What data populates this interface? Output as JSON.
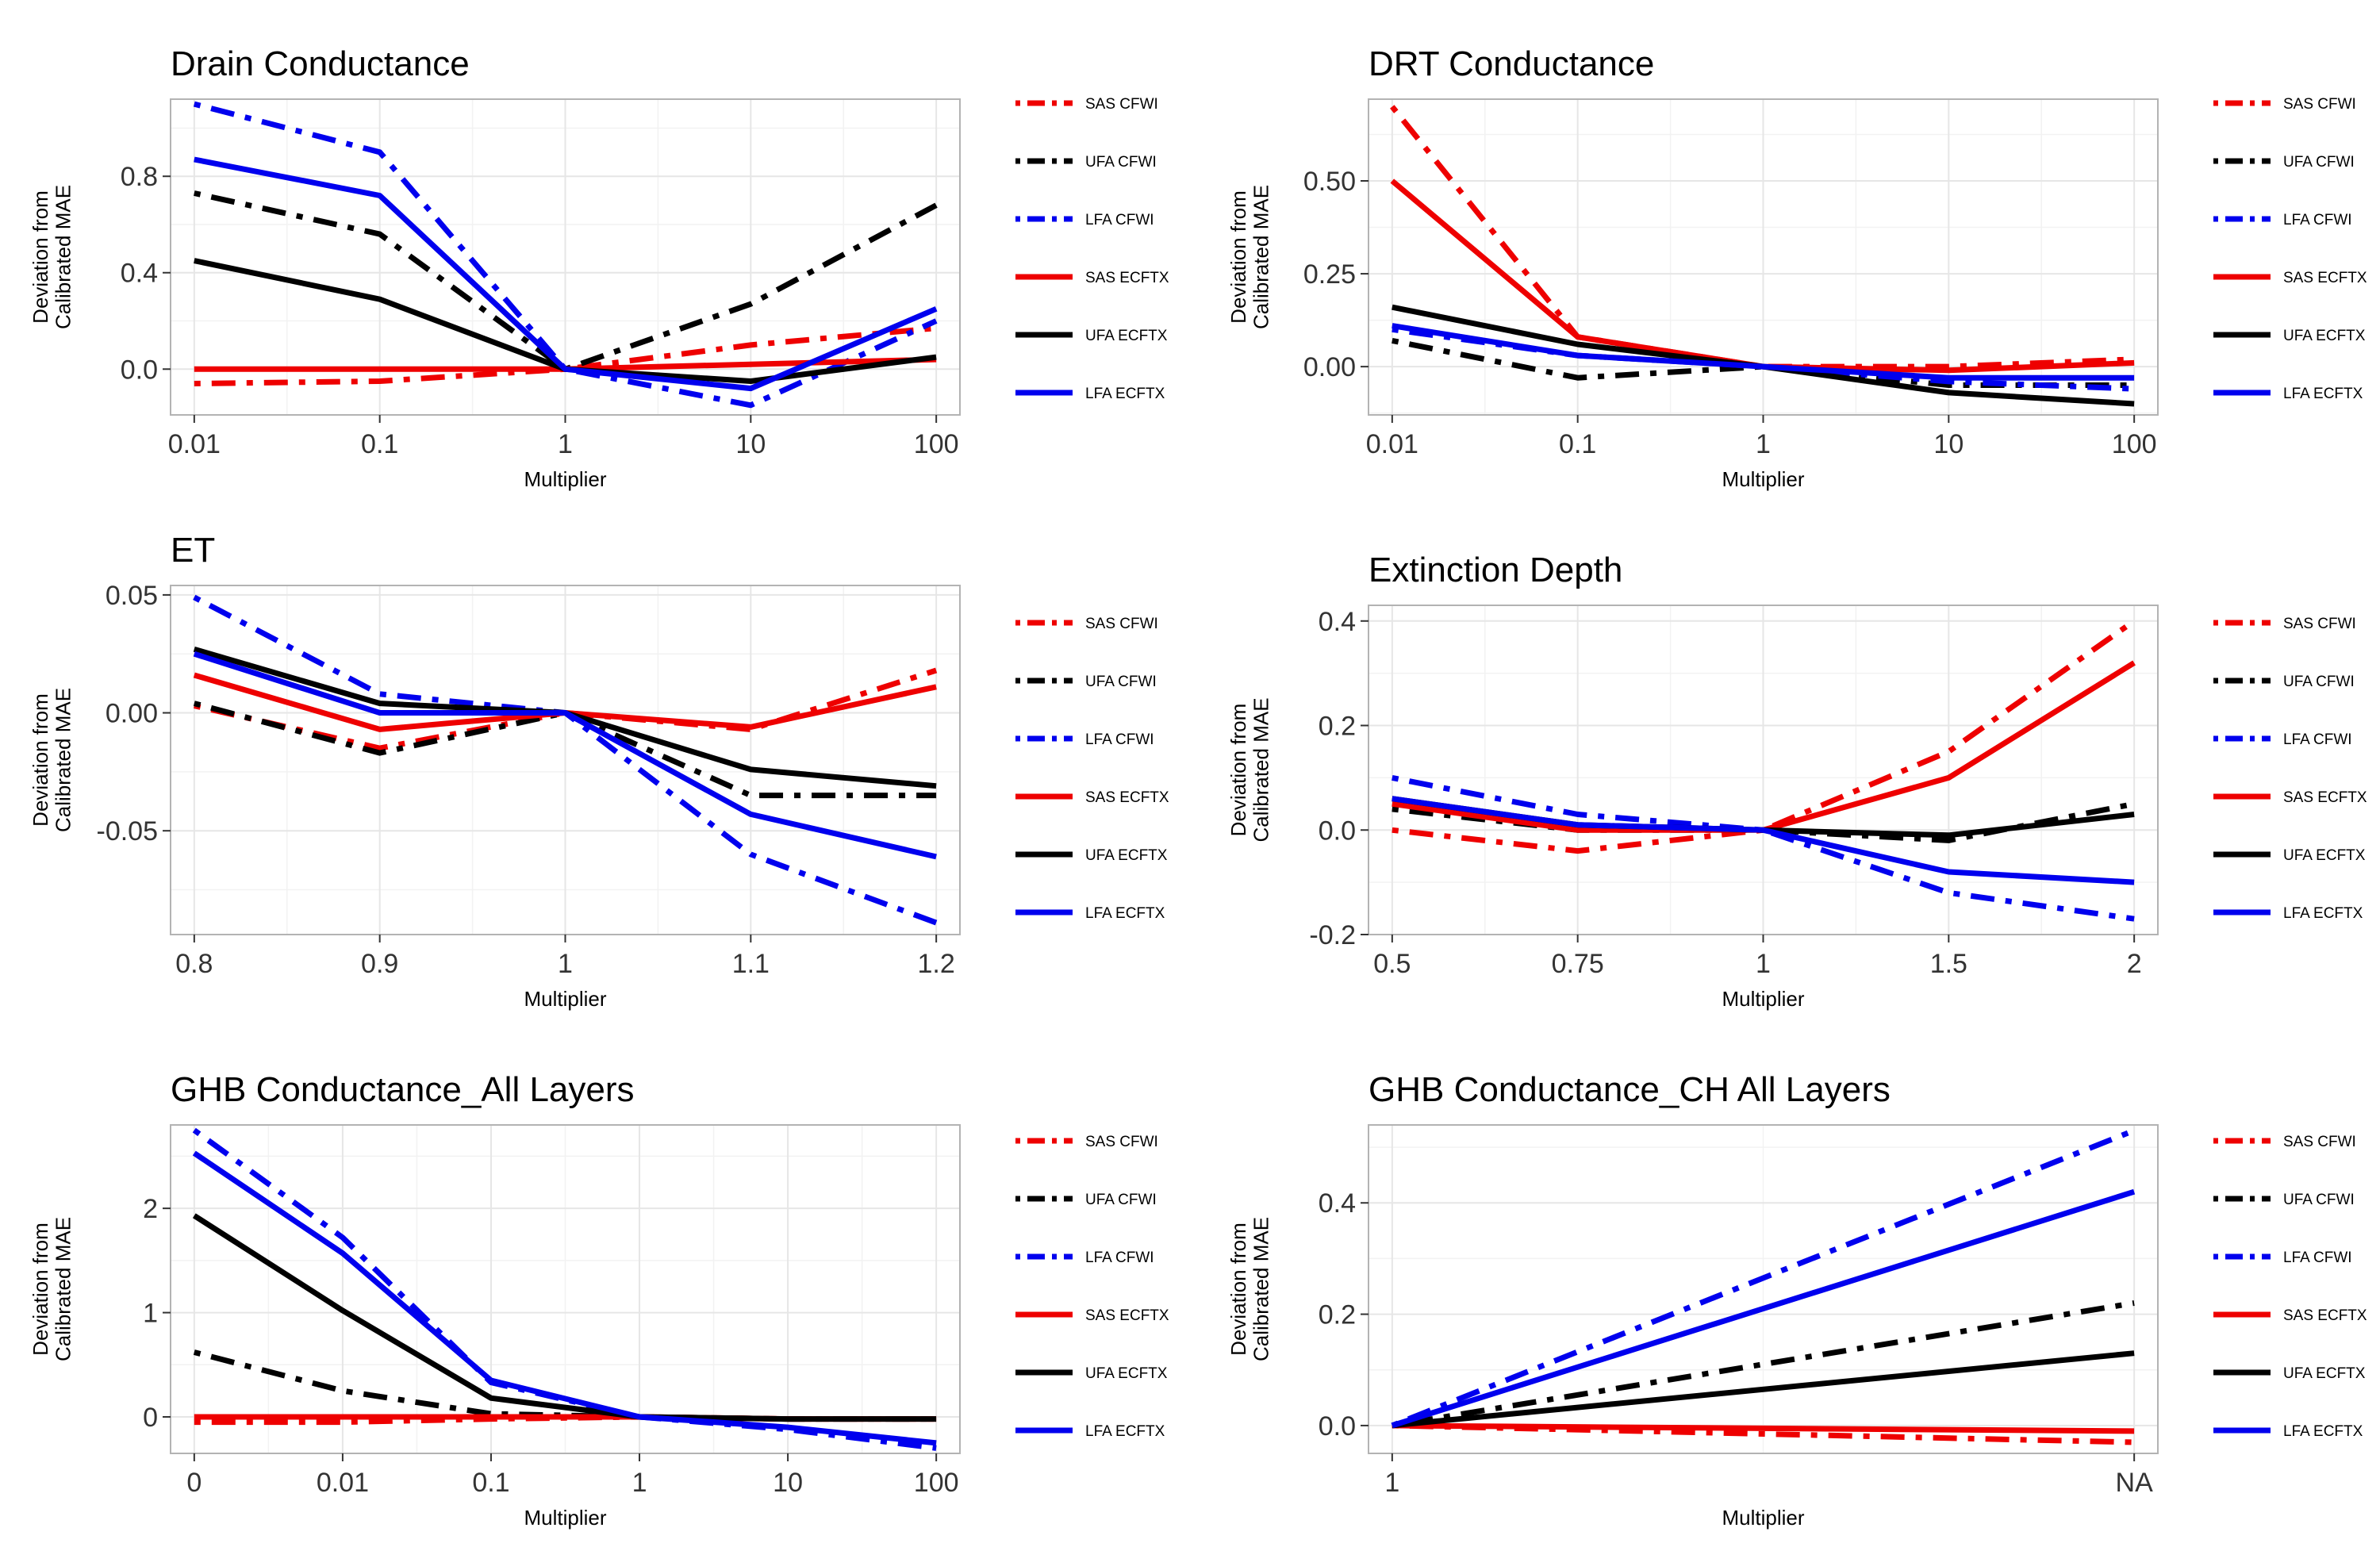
{
  "figure": {
    "colors": {
      "red": "#ee0000",
      "black": "#000000",
      "blue": "#0000ee",
      "grid": "#e6e6e6",
      "frame": "#b3b3b3"
    },
    "legend_entries": [
      {
        "label": "SAS CFWI",
        "color": "red",
        "dash": "dotdash"
      },
      {
        "label": "UFA CFWI",
        "color": "black",
        "dash": "dotdash"
      },
      {
        "label": "LFA CFWI",
        "color": "blue",
        "dash": "dotdash"
      },
      {
        "label": "SAS ECFTX",
        "color": "red",
        "dash": "solid"
      },
      {
        "label": "UFA ECFTX",
        "color": "black",
        "dash": "solid"
      },
      {
        "label": "LFA ECFTX",
        "color": "blue",
        "dash": "solid"
      }
    ]
  },
  "chart_data": [
    {
      "type": "line",
      "title": "Drain Conductance",
      "xlabel": "Multiplier",
      "ylabel": "Deviation from Calibrated MAE",
      "categories": [
        "0.01",
        "0.1",
        "1",
        "10",
        "100"
      ],
      "ylim": [
        -0.19,
        1.12
      ],
      "yticks": [
        0.0,
        0.4,
        0.8
      ],
      "ytick_labels": [
        "0.0",
        "0.4",
        "0.8"
      ],
      "grid": true,
      "legend": "right",
      "series": [
        {
          "name": "SAS CFWI",
          "values": [
            -0.06,
            -0.05,
            0.0,
            0.1,
            0.17
          ]
        },
        {
          "name": "UFA CFWI",
          "values": [
            0.73,
            0.56,
            0.0,
            0.27,
            0.68
          ]
        },
        {
          "name": "LFA CFWI",
          "values": [
            1.1,
            0.9,
            0.0,
            -0.15,
            0.2
          ]
        },
        {
          "name": "SAS ECFTX",
          "values": [
            0.0,
            0.0,
            0.0,
            0.02,
            0.04
          ]
        },
        {
          "name": "UFA ECFTX",
          "values": [
            0.45,
            0.29,
            0.0,
            -0.05,
            0.05
          ]
        },
        {
          "name": "LFA ECFTX",
          "values": [
            0.87,
            0.72,
            0.0,
            -0.08,
            0.25
          ]
        }
      ]
    },
    {
      "type": "line",
      "title": "DRT Conductance",
      "xlabel": "Multiplier",
      "ylabel": "Deviation from Calibrated MAE",
      "categories": [
        "0.01",
        "0.1",
        "1",
        "10",
        "100"
      ],
      "ylim": [
        -0.13,
        0.72
      ],
      "yticks": [
        0.0,
        0.25,
        0.5
      ],
      "ytick_labels": [
        "0.00",
        "0.25",
        "0.50"
      ],
      "grid": true,
      "legend": "right",
      "series": [
        {
          "name": "SAS CFWI",
          "values": [
            0.7,
            0.08,
            0.0,
            0.0,
            0.02
          ]
        },
        {
          "name": "UFA CFWI",
          "values": [
            0.07,
            -0.03,
            0.0,
            -0.05,
            -0.05
          ]
        },
        {
          "name": "LFA CFWI",
          "values": [
            0.1,
            0.03,
            0.0,
            -0.04,
            -0.06
          ]
        },
        {
          "name": "SAS ECFTX",
          "values": [
            0.5,
            0.08,
            0.0,
            -0.01,
            0.01
          ]
        },
        {
          "name": "UFA ECFTX",
          "values": [
            0.16,
            0.06,
            0.0,
            -0.07,
            -0.1
          ]
        },
        {
          "name": "LFA ECFTX",
          "values": [
            0.11,
            0.03,
            0.0,
            -0.03,
            -0.03
          ]
        }
      ]
    },
    {
      "type": "line",
      "title": "ET",
      "xlabel": "Multiplier",
      "ylabel": "Deviation from Calibrated MAE",
      "categories": [
        "0.8",
        "0.9",
        "1",
        "1.1",
        "1.2"
      ],
      "ylim": [
        -0.094,
        0.054
      ],
      "yticks": [
        -0.05,
        0.0,
        0.05
      ],
      "ytick_labels": [
        "-0.05",
        "0.00",
        "0.05"
      ],
      "grid": true,
      "legend": "right",
      "series": [
        {
          "name": "SAS CFWI",
          "values": [
            0.003,
            -0.015,
            0.0,
            -0.007,
            0.018
          ]
        },
        {
          "name": "UFA CFWI",
          "values": [
            0.004,
            -0.017,
            0.0,
            -0.035,
            -0.035
          ]
        },
        {
          "name": "LFA CFWI",
          "values": [
            0.049,
            0.008,
            0.0,
            -0.06,
            -0.089
          ]
        },
        {
          "name": "SAS ECFTX",
          "values": [
            0.016,
            -0.007,
            0.0,
            -0.006,
            0.011
          ]
        },
        {
          "name": "UFA ECFTX",
          "values": [
            0.027,
            0.004,
            0.0,
            -0.024,
            -0.031
          ]
        },
        {
          "name": "LFA ECFTX",
          "values": [
            0.025,
            0.0,
            0.0,
            -0.043,
            -0.061
          ]
        }
      ]
    },
    {
      "type": "line",
      "title": "Extinction Depth",
      "xlabel": "Multiplier",
      "ylabel": "Deviation from Calibrated MAE",
      "categories": [
        "0.5",
        "0.75",
        "1",
        "1.5",
        "2"
      ],
      "ylim": [
        -0.2,
        0.43
      ],
      "yticks": [
        -0.2,
        0.0,
        0.2,
        0.4
      ],
      "ytick_labels": [
        "-0.2",
        "0.0",
        "0.2",
        "0.4"
      ],
      "grid": true,
      "legend": "right",
      "series": [
        {
          "name": "SAS CFWI",
          "values": [
            0.0,
            -0.04,
            0.0,
            0.15,
            0.4
          ]
        },
        {
          "name": "UFA CFWI",
          "values": [
            0.04,
            0.0,
            0.0,
            -0.02,
            0.05
          ]
        },
        {
          "name": "LFA CFWI",
          "values": [
            0.1,
            0.03,
            0.0,
            -0.12,
            -0.17
          ]
        },
        {
          "name": "SAS ECFTX",
          "values": [
            0.05,
            0.0,
            0.0,
            0.1,
            0.32
          ]
        },
        {
          "name": "UFA ECFTX",
          "values": [
            0.06,
            0.01,
            0.0,
            -0.01,
            0.03
          ]
        },
        {
          "name": "LFA ECFTX",
          "values": [
            0.06,
            0.01,
            0.0,
            -0.08,
            -0.1
          ]
        }
      ]
    },
    {
      "type": "line",
      "title": "GHB Conductance_All Layers",
      "xlabel": "Multiplier",
      "ylabel": "Deviation from Calibrated MAE",
      "categories": [
        "0",
        "0.01",
        "0.1",
        "1",
        "10",
        "100"
      ],
      "ylim": [
        -0.35,
        2.8
      ],
      "yticks": [
        0,
        1,
        2
      ],
      "ytick_labels": [
        "0",
        "1",
        "2"
      ],
      "grid": true,
      "legend": "right",
      "series": [
        {
          "name": "SAS CFWI",
          "values": [
            -0.05,
            -0.05,
            -0.02,
            0.0,
            -0.02,
            -0.02
          ]
        },
        {
          "name": "UFA CFWI",
          "values": [
            0.62,
            0.25,
            0.03,
            0.0,
            -0.02,
            -0.02
          ]
        },
        {
          "name": "LFA CFWI",
          "values": [
            2.75,
            1.72,
            0.33,
            0.0,
            -0.12,
            -0.3
          ]
        },
        {
          "name": "SAS ECFTX",
          "values": [
            0.0,
            0.0,
            0.0,
            0.0,
            -0.02,
            -0.02
          ]
        },
        {
          "name": "UFA ECFTX",
          "values": [
            1.93,
            1.02,
            0.18,
            0.0,
            -0.02,
            -0.02
          ]
        },
        {
          "name": "LFA ECFTX",
          "values": [
            2.53,
            1.57,
            0.35,
            0.0,
            -0.1,
            -0.25
          ]
        }
      ]
    },
    {
      "type": "line",
      "title": "GHB Conductance_CH All Layers",
      "xlabel": "Multiplier",
      "ylabel": "Deviation from Calibrated MAE",
      "categories": [
        "1",
        "NA"
      ],
      "ylim": [
        -0.05,
        0.54
      ],
      "yticks": [
        0.0,
        0.2,
        0.4
      ],
      "ytick_labels": [
        "0.0",
        "0.2",
        "0.4"
      ],
      "grid": true,
      "legend": "right",
      "series": [
        {
          "name": "SAS CFWI",
          "values": [
            0.0,
            -0.03
          ]
        },
        {
          "name": "UFA CFWI",
          "values": [
            0.0,
            0.22
          ]
        },
        {
          "name": "LFA CFWI",
          "values": [
            0.0,
            0.53
          ]
        },
        {
          "name": "SAS ECFTX",
          "values": [
            0.0,
            -0.01
          ]
        },
        {
          "name": "UFA ECFTX",
          "values": [
            0.0,
            0.13
          ]
        },
        {
          "name": "LFA ECFTX",
          "values": [
            0.0,
            0.42
          ]
        }
      ]
    }
  ]
}
